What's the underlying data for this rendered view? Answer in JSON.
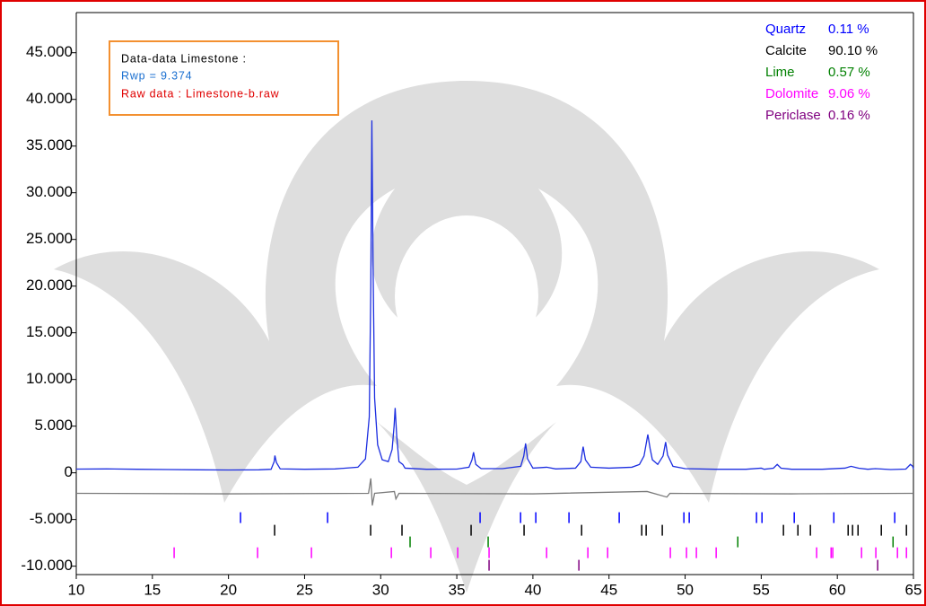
{
  "chart_data": {
    "type": "line",
    "xlim": [
      10,
      65
    ],
    "ylim": [
      -10900,
      49300
    ],
    "xticks": [
      10,
      15,
      20,
      25,
      30,
      35,
      40,
      45,
      50,
      55,
      60,
      65
    ],
    "yticks": [
      {
        "value": 45000,
        "label": "45.000"
      },
      {
        "value": 40000,
        "label": "40.000"
      },
      {
        "value": 35000,
        "label": "35.000"
      },
      {
        "value": 30000,
        "label": "30.000"
      },
      {
        "value": 25000,
        "label": "25.000"
      },
      {
        "value": 20000,
        "label": "20.000"
      },
      {
        "value": 15000,
        "label": "15.000"
      },
      {
        "value": 10000,
        "label": "10.000"
      },
      {
        "value": 5000,
        "label": "5.000"
      },
      0,
      {
        "value": -5000,
        "label": "-5.000"
      },
      {
        "value": -10000,
        "label": "-10.000"
      }
    ],
    "grid": false,
    "info_box": [
      "Data-data Limestone :",
      "Rwp =  9.374",
      "Raw data : Limestone-b.raw"
    ],
    "series": [
      {
        "color": "#1c2ee0",
        "x": [
          10,
          12,
          14,
          16,
          18,
          20,
          22,
          22.8,
          23.0,
          23.05,
          23.15,
          23.4,
          25,
          27,
          28.5,
          29.0,
          29.25,
          29.35,
          29.42,
          29.5,
          29.6,
          29.8,
          30.1,
          30.5,
          30.75,
          30.88,
          30.95,
          31.05,
          31.2,
          31.45,
          31.6,
          33,
          35,
          35.8,
          36.0,
          36.1,
          36.25,
          36.6,
          38,
          39.2,
          39.4,
          39.52,
          39.65,
          40,
          40.9,
          41.5,
          42.8,
          43.15,
          43.3,
          43.45,
          43.8,
          45,
          46.5,
          47.0,
          47.3,
          47.55,
          47.7,
          47.85,
          48.2,
          48.55,
          48.72,
          48.85,
          49.2,
          50,
          52,
          54,
          55.0,
          55.2,
          55.8,
          56.05,
          56.3,
          57,
          59,
          60.5,
          60.9,
          61.4,
          62,
          62.5,
          63.5,
          64.5,
          64.8,
          64.95,
          65
        ],
        "values": [
          400,
          420,
          380,
          350,
          320,
          300,
          320,
          380,
          1200,
          1850,
          1100,
          420,
          380,
          420,
          600,
          1500,
          6000,
          20000,
          37750,
          22000,
          8000,
          3000,
          1400,
          1200,
          2500,
          5000,
          6950,
          4000,
          1200,
          900,
          500,
          380,
          400,
          600,
          1400,
          2200,
          900,
          450,
          450,
          700,
          1800,
          3150,
          1500,
          500,
          600,
          420,
          500,
          1200,
          2800,
          1400,
          600,
          500,
          600,
          900,
          1800,
          4100,
          2600,
          1400,
          900,
          1800,
          3300,
          1900,
          700,
          450,
          380,
          380,
          500,
          380,
          500,
          900,
          500,
          380,
          380,
          500,
          700,
          500,
          380,
          450,
          350,
          400,
          900,
          700,
          400
        ]
      },
      {
        "color": "#7a7a7a",
        "x": [
          10,
          20,
          29.2,
          29.35,
          29.45,
          29.6,
          30.9,
          31.0,
          31.2,
          40,
          47.5,
          48.8,
          49,
          57,
          65
        ],
        "values": [
          -2200,
          -2250,
          -2200,
          -600,
          -3500,
          -2200,
          -2000,
          -2800,
          -2200,
          -2250,
          -2000,
          -2600,
          -2200,
          -2250,
          -2200
        ]
      }
    ],
    "phases": [
      {
        "name": "Quartz",
        "color": "#0000ff",
        "percent": 0.11,
        "percent_label": "0.11 %",
        "marker_y": -4800,
        "peaks": [
          20.79,
          26.51,
          36.53,
          39.19,
          40.19,
          42.37,
          45.67,
          49.92,
          50.27,
          54.69,
          55.05,
          57.17,
          59.77,
          63.77
        ]
      },
      {
        "name": "Calcite",
        "color": "#000000",
        "percent": 90.1,
        "percent_label": "90.10 %",
        "marker_y": -6150,
        "peaks": [
          23.03,
          29.34,
          31.4,
          35.94,
          39.42,
          43.2,
          47.15,
          47.44,
          48.5,
          56.46,
          57.41,
          58.23,
          60.71,
          61.0,
          61.36,
          62.89,
          64.54
        ]
      },
      {
        "name": "Lime",
        "color": "#008000",
        "percent": 0.57,
        "percent_label": "0.57 %",
        "marker_y": -7400,
        "peaks": [
          31.93,
          37.06,
          53.46,
          63.66
        ]
      },
      {
        "name": "Dolomite",
        "color": "#ff00ff",
        "percent": 9.06,
        "percent_label": "9.06 %",
        "marker_y": -8560,
        "peaks": [
          16.43,
          21.91,
          25.45,
          30.7,
          33.29,
          35.06,
          37.12,
          40.9,
          43.61,
          44.91,
          49.03,
          50.09,
          50.74,
          52.04,
          58.64,
          59.59,
          59.7,
          61.59,
          62.53,
          63.95,
          64.54
        ]
      },
      {
        "name": "Periclase",
        "color": "#800080",
        "percent": 0.16,
        "percent_label": "0.16 %",
        "marker_y": -9900,
        "peaks": [
          37.12,
          43.02,
          62.65
        ]
      }
    ]
  }
}
